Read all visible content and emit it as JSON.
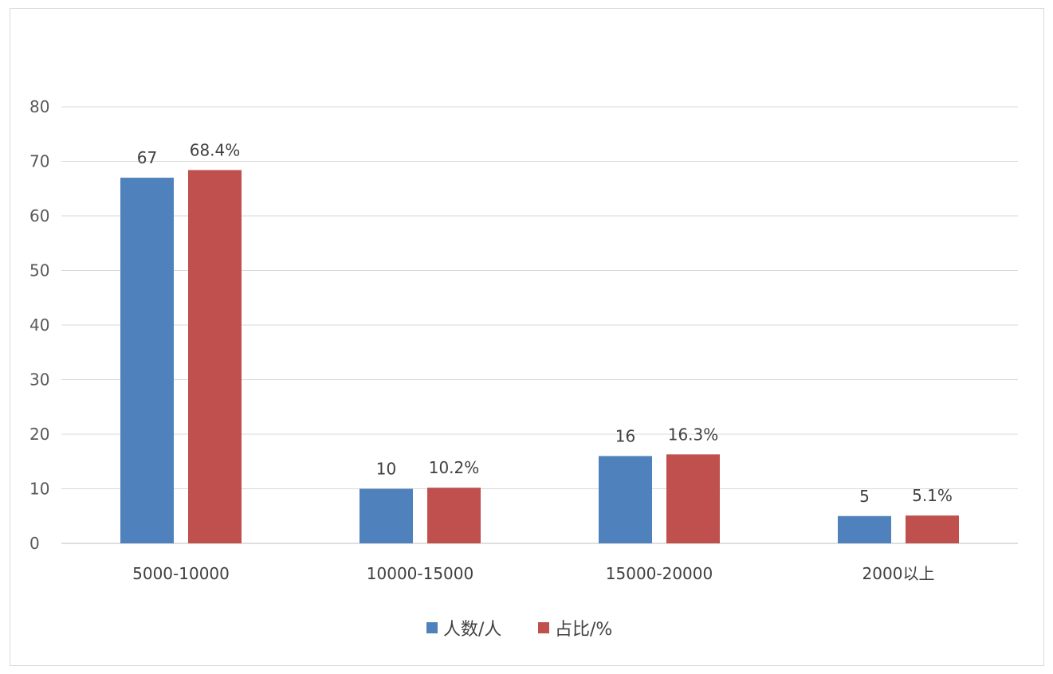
{
  "chart_data": {
    "type": "bar",
    "title": "",
    "xlabel": "",
    "ylabel": "",
    "ylim": [
      0,
      80
    ],
    "yticks": [
      0,
      10,
      20,
      30,
      40,
      50,
      60,
      70,
      80
    ],
    "categories": [
      "5000-10000",
      "10000-15000",
      "15000-20000",
      "2000以上"
    ],
    "series": [
      {
        "name": "人数/人",
        "values": [
          67,
          10,
          16,
          5
        ],
        "labels": [
          "67",
          "10",
          "16",
          "5"
        ],
        "color": "#4F81BD"
      },
      {
        "name": "占比/%",
        "values": [
          68.4,
          10.2,
          16.3,
          5.1
        ],
        "labels": [
          "68.4%",
          "10.2%",
          "16.3%",
          "5.1%"
        ],
        "color": "#C0504D"
      }
    ],
    "grid": true,
    "legend_position": "bottom",
    "gridline_color": "#d9d9d9"
  }
}
